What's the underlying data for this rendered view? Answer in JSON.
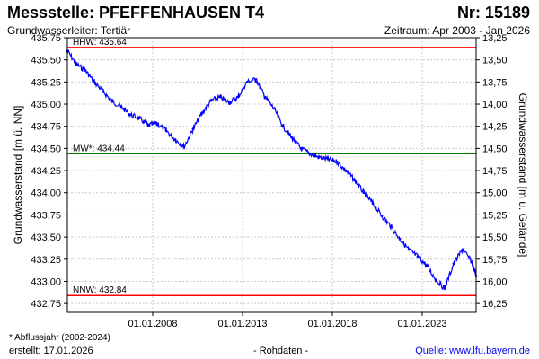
{
  "header": {
    "title": "Messstelle: PFEFFENHAUSEN T4",
    "number": "Nr: 15189",
    "subtitle": "Grundwasserleiter: Tertiär",
    "period": "Zeitraum: Apr 2003 - Jan 2026"
  },
  "footer": {
    "footnote": "* Abflussjahr (2002-2024)",
    "created": "erstellt:  17.01.2026",
    "rawdata": "- Rohdaten -",
    "source": "Quelle:  www.lfu.bayern.de"
  },
  "colors": {
    "series": "#0000ff",
    "hhw": "#ff0000",
    "nnw": "#ff0000",
    "mw": "#008000",
    "grid": "#c8c8c8"
  },
  "chart_data": {
    "type": "line",
    "ylabel": "Grundwasserstand [m ü. NN]",
    "ylabel_right": "Grundwasserstand [m u. Gelände]",
    "x_ticks": [
      "01.01.2008",
      "01.01.2013",
      "01.01.2018",
      "01.01.2023"
    ],
    "xlim": [
      "2003-04",
      "2026-01"
    ],
    "ylim": [
      432.65,
      435.75
    ],
    "y_ticks": [
      "432,75",
      "433,00",
      "433,25",
      "433,50",
      "433,75",
      "434,00",
      "434,25",
      "434,50",
      "434,75",
      "435,00",
      "435,25",
      "435,50",
      "435,75"
    ],
    "y_right_ticks": [
      "16,25",
      "16,00",
      "15,75",
      "15,50",
      "15,25",
      "15,00",
      "14,75",
      "14,50",
      "14,25",
      "14,00",
      "13,75",
      "13,50",
      "13,25"
    ],
    "grid": true,
    "reference_lines": [
      {
        "label": "HHW: 435.64",
        "value": 435.64
      },
      {
        "label": "MW*: 434.44",
        "value": 434.44
      },
      {
        "label": "NNW: 432.84",
        "value": 432.84
      }
    ],
    "series": [
      {
        "x": [
          "2003-04",
          "2003-10",
          "2004-04",
          "2004-10",
          "2005-04",
          "2005-10",
          "2006-04",
          "2006-10",
          "2007-04",
          "2007-10",
          "2008-04",
          "2008-10",
          "2009-04",
          "2009-10",
          "2010-04",
          "2010-10",
          "2011-04",
          "2011-10",
          "2012-04",
          "2012-10",
          "2013-04",
          "2013-10",
          "2014-04",
          "2014-10",
          "2015-04",
          "2015-10",
          "2016-04",
          "2016-10",
          "2017-04",
          "2017-10",
          "2018-04",
          "2018-10",
          "2019-04",
          "2019-10",
          "2020-04",
          "2020-10",
          "2021-04",
          "2021-10",
          "2022-04",
          "2022-10",
          "2023-04",
          "2023-10",
          "2024-04",
          "2024-10",
          "2025-04",
          "2025-10",
          "2026-01"
        ],
        "values": [
          435.6,
          435.45,
          435.38,
          435.25,
          435.14,
          435.03,
          434.97,
          434.88,
          434.84,
          434.76,
          434.78,
          434.7,
          434.6,
          434.52,
          434.72,
          434.9,
          435.04,
          435.08,
          435.02,
          435.08,
          435.25,
          435.28,
          435.08,
          434.95,
          434.75,
          434.62,
          434.5,
          434.44,
          434.4,
          434.38,
          434.35,
          434.25,
          434.14,
          434.0,
          433.88,
          433.74,
          433.62,
          433.48,
          433.36,
          433.28,
          433.18,
          433.02,
          432.92,
          433.2,
          433.36,
          433.22,
          433.06
        ]
      }
    ]
  }
}
